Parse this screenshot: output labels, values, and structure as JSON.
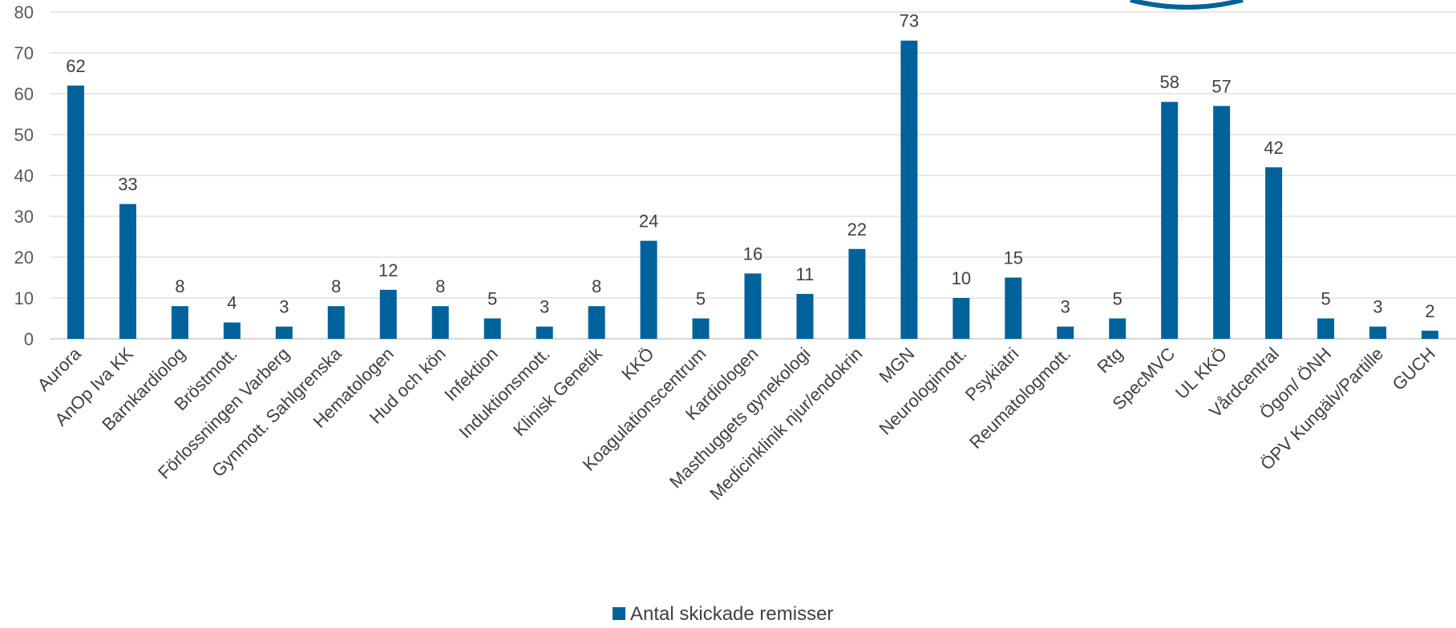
{
  "colors": {
    "bar": "#00629B",
    "grid": "#D9D9D9",
    "axis": "#BFBFBF",
    "logo": "#00629B"
  },
  "chart_data": {
    "type": "bar",
    "title": "",
    "xlabel": "",
    "ylabel": "",
    "ylim": [
      0,
      80
    ],
    "yticks": [
      0,
      10,
      20,
      30,
      40,
      50,
      60,
      70,
      80
    ],
    "grid": true,
    "legend_position": "bottom",
    "categories": [
      "Aurora",
      "AnOp Iva KK",
      "Barnkardiolog",
      "Bröstmott.",
      "Förlossningen Varberg",
      "Gynmott. Sahlgrenska",
      "Hematologen",
      "Hud och kön",
      "Infektion",
      "Induktionsmott.",
      "Klinisk Genetik",
      "KKÖ",
      "Koagulationscentrum",
      "Kardiologen",
      "Masthuggets gynekologi",
      "Medicinklinik njur/endokrin",
      "MGN",
      "Neurologimott.",
      "Psykiatri",
      "Reumatologmott.",
      "Rtg",
      "SpecMVC",
      "UL KKÖ",
      "Vårdcentral",
      "Ögon/ ÖNH",
      "ÖPV Kungälv/Partille",
      "GUCH"
    ],
    "series": [
      {
        "name": "Antal skickade remisser",
        "values": [
          62,
          33,
          8,
          4,
          3,
          8,
          12,
          8,
          5,
          3,
          8,
          24,
          5,
          16,
          11,
          22,
          73,
          10,
          15,
          3,
          5,
          58,
          57,
          42,
          5,
          3,
          2
        ]
      }
    ]
  }
}
